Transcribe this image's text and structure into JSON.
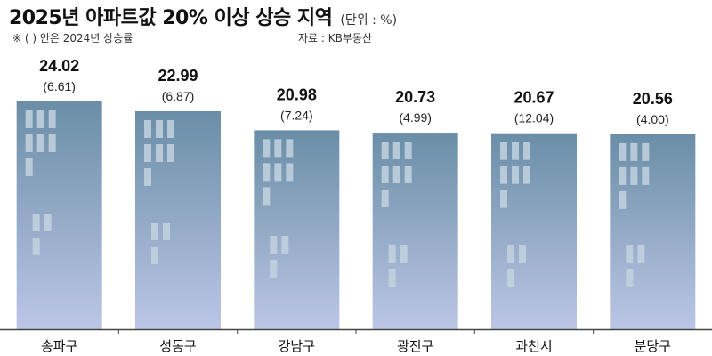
{
  "header": {
    "title": "2025년 아파트값 20% 이상 상승 지역",
    "unit": "(단위 : %)",
    "note": "※ (  ) 안은 2024년 상승률",
    "source": "자료 : KB부동산"
  },
  "colors": {
    "bar_top": "#6a8ea7",
    "bar_bottom": "#bcc6e6",
    "window": "#c3d2df",
    "axis": "#444444"
  },
  "chart_data": {
    "type": "bar",
    "categories": [
      "송파구",
      "성동구",
      "강남구",
      "광진구",
      "과천시",
      "분당구"
    ],
    "series": [
      {
        "values": [
          24.02,
          22.99,
          20.98,
          20.73,
          20.67,
          20.56
        ]
      },
      {
        "values": [
          6.61,
          6.87,
          7.24,
          4.99,
          12.04,
          4.0
        ]
      }
    ],
    "value_labels": [
      "24.02",
      "22.99",
      "20.98",
      "20.73",
      "20.67",
      "20.56"
    ],
    "sub_labels": [
      "(6.61)",
      "(6.87)",
      "(7.24)",
      "(4.99)",
      "(12.04)",
      "(4.00)"
    ]
  }
}
